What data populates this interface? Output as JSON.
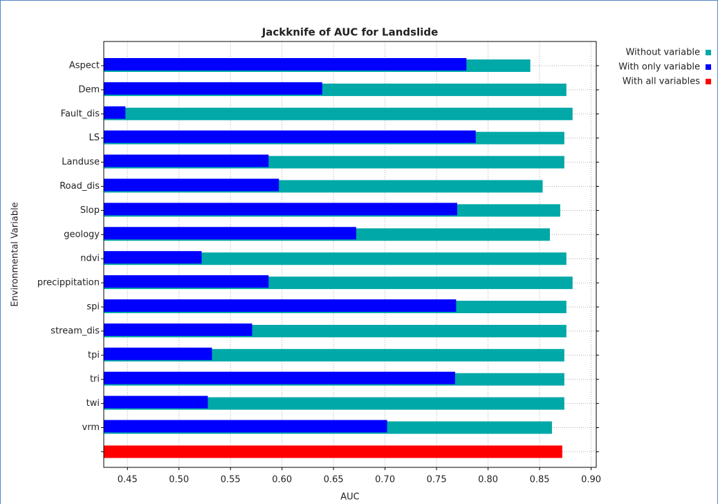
{
  "chart_data": {
    "type": "barh",
    "title": "Jackknife of AUC for Landslide",
    "xlabel": "AUC",
    "ylabel": "Environmental Variable",
    "categories": [
      "Aspect",
      "Dem",
      "Fault_dis",
      "LS",
      "Landuse",
      "Road_dis",
      "Slop",
      "geology",
      "ndvi",
      "precippitation",
      "spi",
      "stream_dis",
      "tpi",
      "tri",
      "twi",
      "vrm",
      null
    ],
    "series": [
      {
        "name": "Without variable",
        "color": "#00a8a8",
        "values": [
          0.841,
          0.876,
          0.882,
          0.874,
          0.874,
          0.853,
          0.87,
          0.86,
          0.876,
          0.882,
          0.876,
          0.876,
          0.874,
          0.874,
          0.874,
          0.862,
          null
        ]
      },
      {
        "name": "With only variable",
        "color": "#0000ff",
        "values": [
          0.779,
          0.639,
          0.448,
          0.788,
          0.587,
          0.597,
          0.77,
          0.672,
          0.522,
          0.587,
          0.769,
          0.571,
          0.532,
          0.768,
          0.528,
          0.702,
          null
        ]
      },
      {
        "name": "With all variables",
        "color": "#ff0000",
        "values": [
          null,
          null,
          null,
          null,
          null,
          null,
          null,
          null,
          null,
          null,
          null,
          null,
          null,
          null,
          null,
          null,
          0.872
        ]
      }
    ],
    "xlim": [
      0.427,
      0.905
    ],
    "xticks": [
      {
        "value": 0.45,
        "label": "0.45"
      },
      {
        "value": 0.5,
        "label": "0.50"
      },
      {
        "value": 0.55,
        "label": "0.55"
      },
      {
        "value": 0.6,
        "label": "0.60"
      },
      {
        "value": 0.65,
        "label": "0.65"
      },
      {
        "value": 0.7,
        "label": "0.70"
      },
      {
        "value": 0.75,
        "label": "0.75"
      },
      {
        "value": 0.8,
        "label": "0.80"
      },
      {
        "value": 0.85,
        "label": "0.85"
      },
      {
        "value": 0.9,
        "label": "0.90"
      }
    ],
    "grid": true,
    "legend": "upper right"
  }
}
